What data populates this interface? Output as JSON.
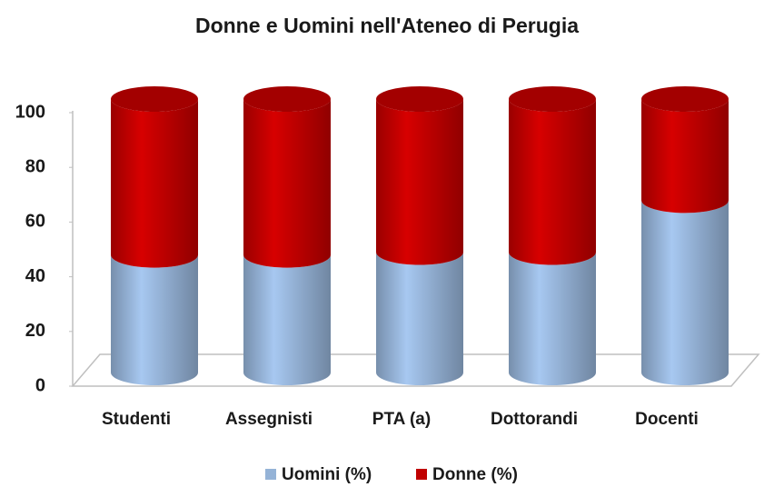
{
  "chart_data": {
    "type": "bar",
    "stacked": true,
    "title": "Donne e Uomini nell'Ateneo di Perugia",
    "categories": [
      "Studenti",
      "Assegnisti",
      "PTA (a)",
      "Dottorandi",
      "Docenti"
    ],
    "series": [
      {
        "name": "Uomini (%)",
        "color": "#95b3d7",
        "values": [
          43,
          43,
          44,
          44,
          63
        ]
      },
      {
        "name": "Donne (%)",
        "color": "#c00000",
        "values": [
          57,
          57,
          56,
          56,
          37
        ]
      }
    ],
    "ylim": [
      0,
      100
    ],
    "yticks": [
      0,
      20,
      40,
      60,
      80,
      100
    ],
    "legend": "bottom"
  }
}
